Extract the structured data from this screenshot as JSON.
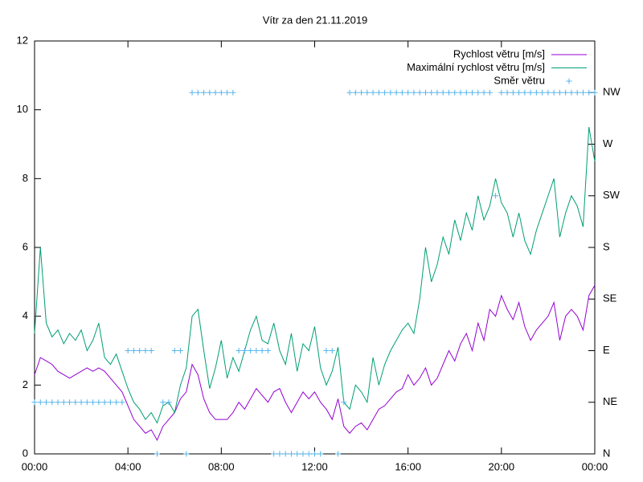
{
  "chart_data": {
    "type": "line",
    "title": "Vítr za den 21.11.2019",
    "x": [
      0,
      0.25,
      0.5,
      0.75,
      1,
      1.25,
      1.5,
      1.75,
      2,
      2.25,
      2.5,
      2.75,
      3,
      3.25,
      3.5,
      3.75,
      4,
      4.25,
      4.5,
      4.75,
      5,
      5.25,
      5.5,
      5.75,
      6,
      6.25,
      6.5,
      6.75,
      7,
      7.25,
      7.5,
      7.75,
      8,
      8.25,
      8.5,
      8.75,
      9,
      9.25,
      9.5,
      9.75,
      10,
      10.25,
      10.5,
      10.75,
      11,
      11.25,
      11.5,
      11.75,
      12,
      12.25,
      12.5,
      12.75,
      13,
      13.25,
      13.5,
      13.75,
      14,
      14.25,
      14.5,
      14.75,
      15,
      15.25,
      15.5,
      15.75,
      16,
      16.25,
      16.5,
      16.75,
      17,
      17.25,
      17.5,
      17.75,
      18,
      18.25,
      18.5,
      18.75,
      19,
      19.25,
      19.5,
      19.75,
      20,
      20.25,
      20.5,
      20.75,
      21,
      21.25,
      21.5,
      21.75,
      22,
      22.25,
      22.5,
      22.75,
      23,
      23.25,
      23.5,
      23.75,
      24
    ],
    "series": [
      {
        "name": "Rychlost větru [m/s]",
        "color": "#9400d3",
        "style": "line",
        "values": [
          2.3,
          2.8,
          2.7,
          2.6,
          2.4,
          2.3,
          2.2,
          2.3,
          2.4,
          2.5,
          2.4,
          2.5,
          2.4,
          2.2,
          2.0,
          1.8,
          1.4,
          1.0,
          0.8,
          0.6,
          0.7,
          0.4,
          0.8,
          1.0,
          1.2,
          1.6,
          1.8,
          2.6,
          2.3,
          1.6,
          1.2,
          1.0,
          1.0,
          1.0,
          1.2,
          1.5,
          1.3,
          1.6,
          1.9,
          1.7,
          1.5,
          1.8,
          1.9,
          1.5,
          1.2,
          1.5,
          1.8,
          1.6,
          1.8,
          1.5,
          1.3,
          1.0,
          1.6,
          0.8,
          0.6,
          0.8,
          0.9,
          0.7,
          1.0,
          1.3,
          1.4,
          1.6,
          1.8,
          1.9,
          2.3,
          2.0,
          2.2,
          2.5,
          2.0,
          2.2,
          2.6,
          3.0,
          2.7,
          3.2,
          3.5,
          3.0,
          3.8,
          3.3,
          4.2,
          4.0,
          4.6,
          4.2,
          3.9,
          4.4,
          3.7,
          3.3,
          3.6,
          3.8,
          4.0,
          4.4,
          3.3,
          4.0,
          4.2,
          4.0,
          3.6,
          4.6,
          4.9
        ]
      },
      {
        "name": "Maximální rychlost větru [m/s]",
        "color": "#009e73",
        "style": "line",
        "values": [
          3.5,
          6.0,
          3.8,
          3.4,
          3.6,
          3.2,
          3.5,
          3.3,
          3.6,
          3.0,
          3.3,
          3.8,
          2.8,
          2.6,
          2.9,
          2.4,
          1.9,
          1.5,
          1.3,
          1.0,
          1.2,
          0.9,
          1.4,
          1.5,
          1.2,
          2.0,
          2.5,
          4.0,
          4.2,
          3.0,
          1.9,
          2.5,
          3.3,
          2.2,
          2.8,
          2.4,
          3.0,
          3.6,
          4.0,
          3.3,
          3.2,
          3.8,
          3.0,
          2.6,
          3.5,
          2.4,
          3.2,
          3.0,
          3.7,
          2.5,
          2.0,
          2.4,
          3.1,
          1.5,
          1.3,
          2.0,
          1.8,
          1.5,
          2.8,
          2.0,
          2.6,
          3.0,
          3.3,
          3.6,
          3.8,
          3.5,
          4.5,
          6.0,
          5.0,
          5.5,
          6.3,
          5.8,
          6.8,
          6.2,
          7.0,
          6.5,
          7.5,
          6.8,
          7.2,
          8.0,
          7.3,
          7.0,
          6.3,
          7.0,
          6.2,
          5.8,
          6.5,
          7.0,
          7.5,
          8.0,
          6.3,
          7.0,
          7.5,
          7.2,
          6.6,
          9.5,
          8.5
        ]
      },
      {
        "name": "Směr větru",
        "color": "#56b4e9",
        "style": "points",
        "axis": "y2",
        "values": [
          45,
          45,
          45,
          45,
          45,
          45,
          45,
          45,
          45,
          45,
          45,
          45,
          45,
          45,
          45,
          45,
          90,
          90,
          90,
          90,
          90,
          0,
          45,
          45,
          90,
          90,
          0,
          315,
          315,
          315,
          315,
          315,
          315,
          315,
          315,
          90,
          90,
          90,
          90,
          90,
          90,
          0,
          0,
          0,
          0,
          0,
          0,
          0,
          0,
          0,
          90,
          90,
          0,
          45,
          315,
          315,
          315,
          315,
          315,
          315,
          315,
          315,
          315,
          315,
          315,
          315,
          315,
          315,
          315,
          315,
          315,
          315,
          315,
          315,
          315,
          315,
          315,
          315,
          315,
          225,
          315,
          315,
          315,
          315,
          315,
          315,
          315,
          315,
          315,
          315,
          315,
          315,
          315,
          315,
          315,
          315,
          315
        ]
      }
    ],
    "xlim": [
      0,
      24
    ],
    "xticks": [
      {
        "value": 0,
        "label": "00:00"
      },
      {
        "value": 4,
        "label": "04:00"
      },
      {
        "value": 8,
        "label": "08:00"
      },
      {
        "value": 12,
        "label": "12:00"
      },
      {
        "value": 16,
        "label": "16:00"
      },
      {
        "value": 20,
        "label": "20:00"
      },
      {
        "value": 24,
        "label": "00:00"
      }
    ],
    "ylim": [
      0,
      12
    ],
    "yticks": [
      0,
      2,
      4,
      6,
      8,
      10,
      12
    ],
    "y2lim": [
      0,
      360
    ],
    "y2ticks": [
      {
        "value": 0,
        "label": "N"
      },
      {
        "value": 45,
        "label": "NE"
      },
      {
        "value": 90,
        "label": "E"
      },
      {
        "value": 135,
        "label": "SE"
      },
      {
        "value": 180,
        "label": "S"
      },
      {
        "value": 225,
        "label": "SW"
      },
      {
        "value": 270,
        "label": "W"
      },
      {
        "value": 315,
        "label": "NW"
      }
    ],
    "legend": "top-right"
  }
}
